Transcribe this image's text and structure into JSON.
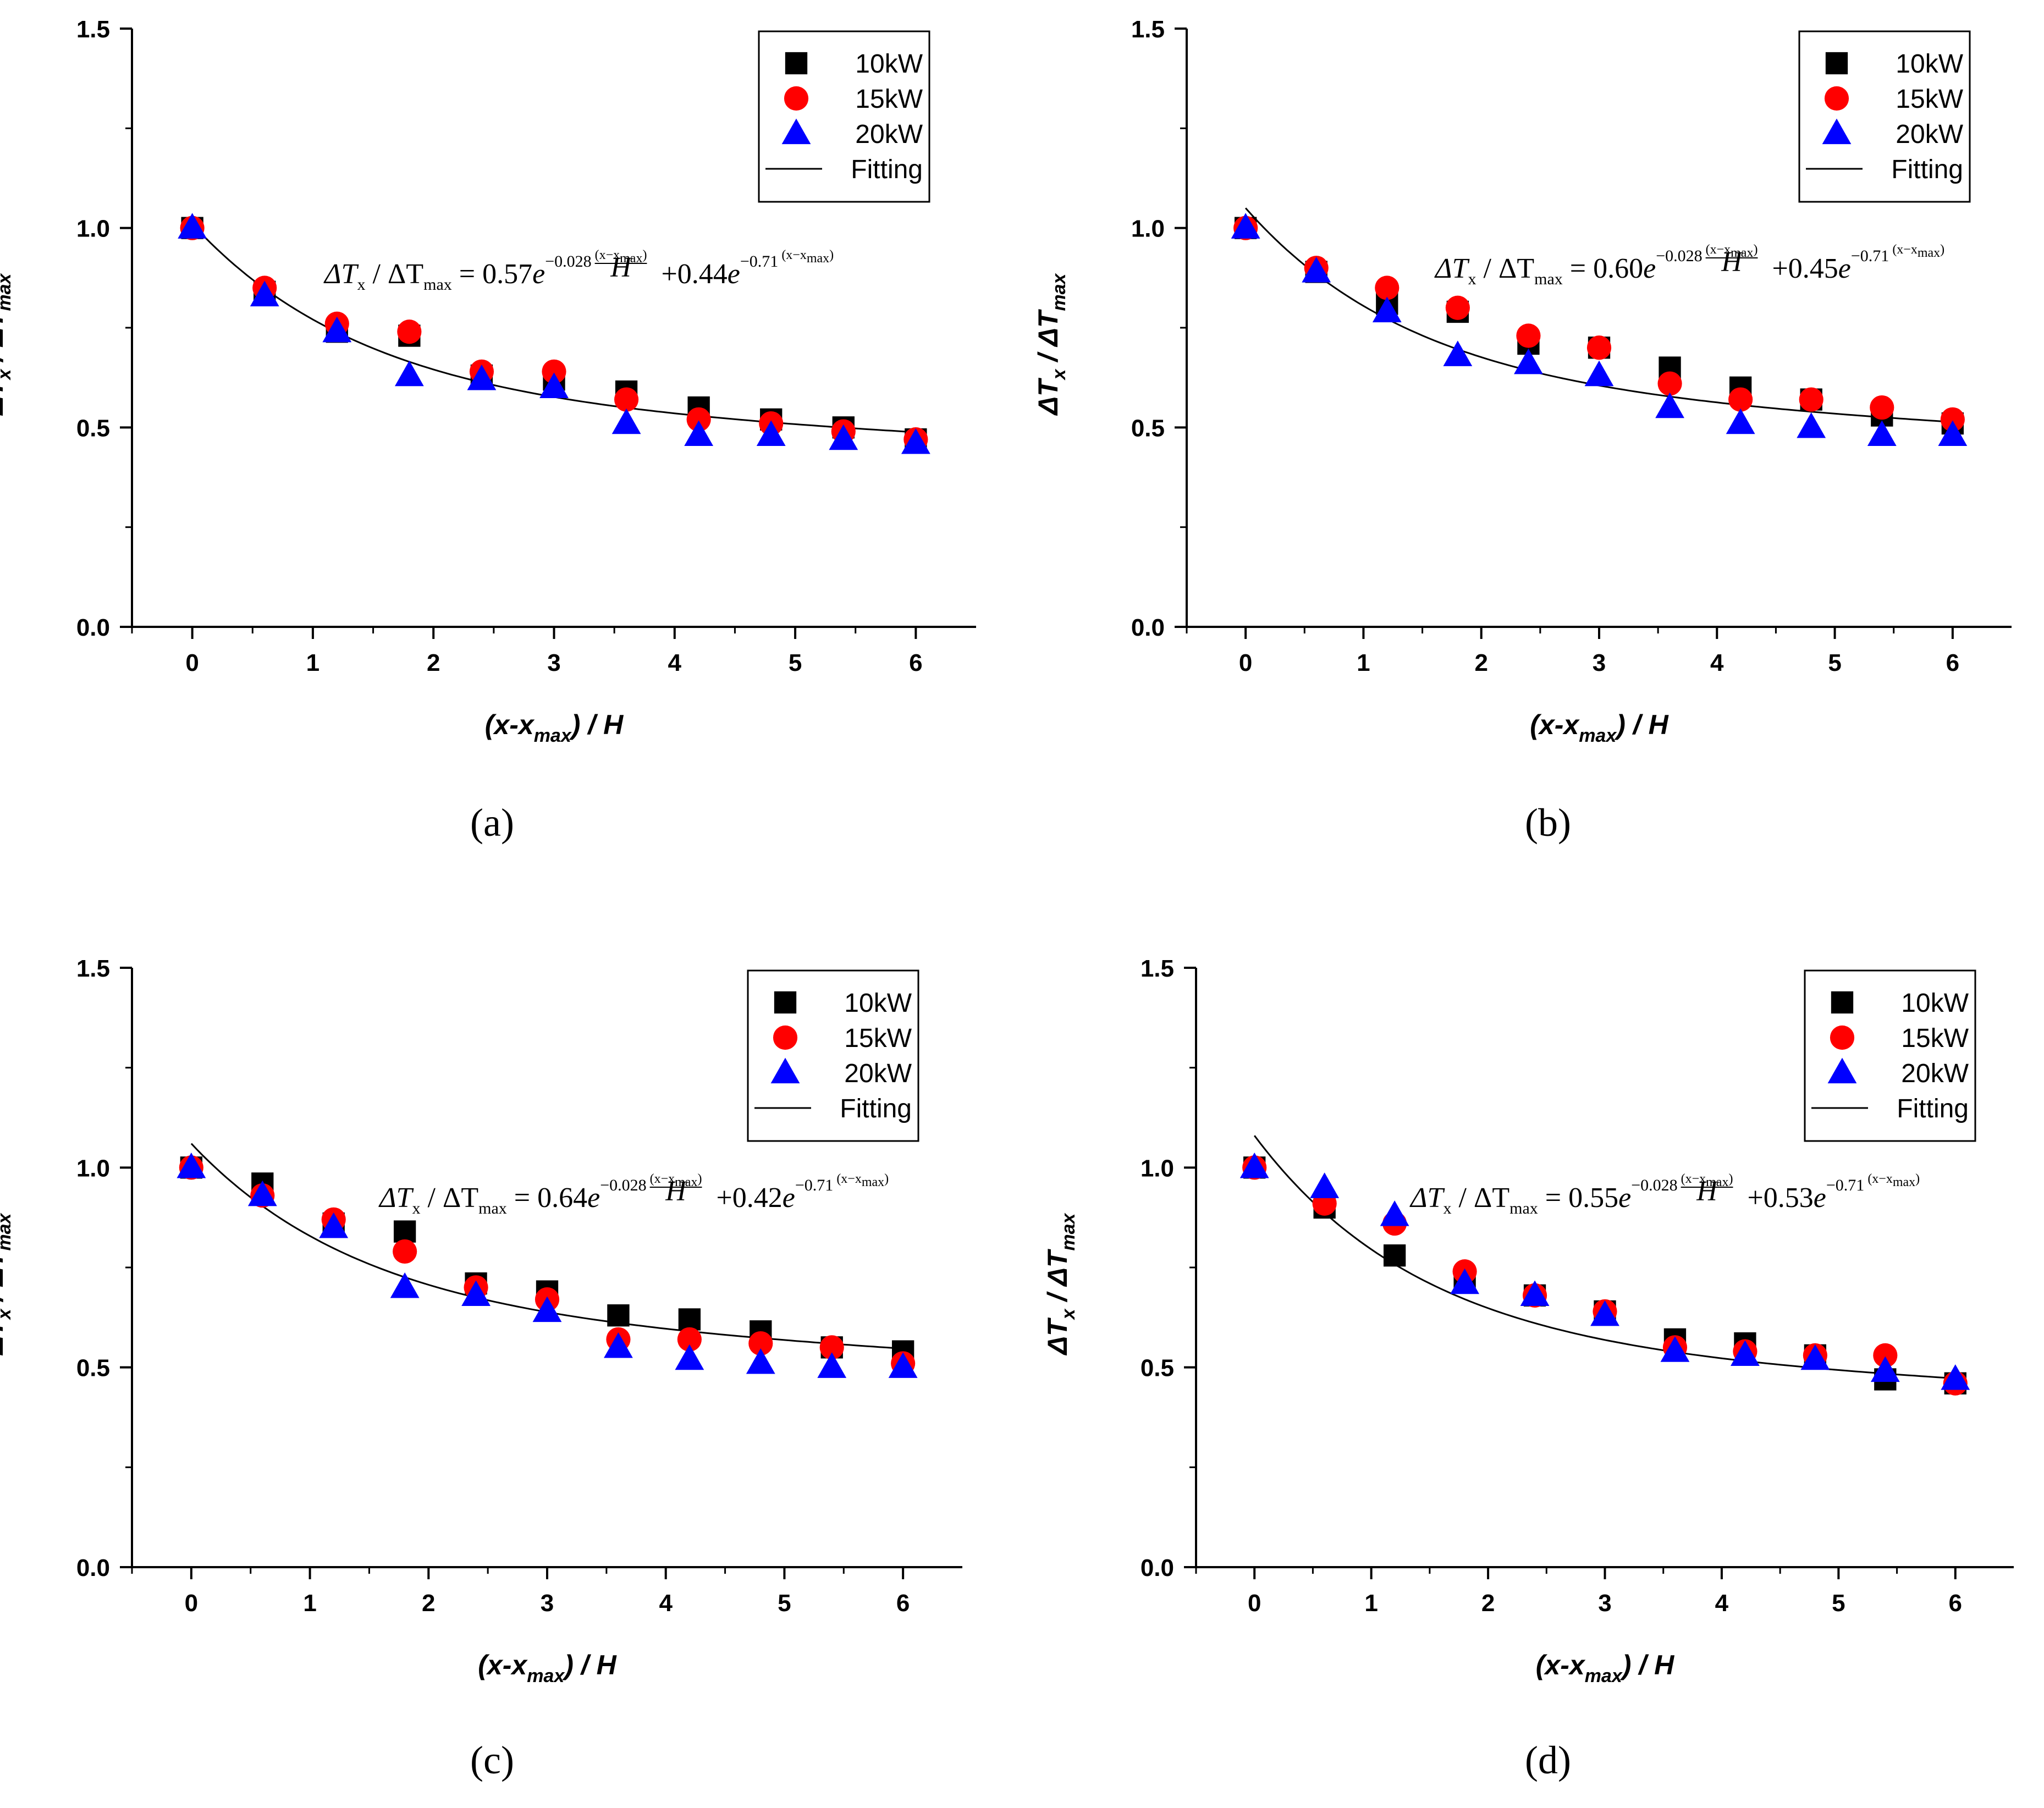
{
  "axis_common": {
    "xlabel_main": "(x-x",
    "xlabel_sub": "max",
    "xlabel_tail": ") / H",
    "ylabel_delta": "ΔT",
    "ylabel_sub_x": "x",
    "ylabel_sep": " / ΔT",
    "ylabel_sub_max": "max"
  },
  "legend": [
    {
      "label": "10kW",
      "marker": "square",
      "color": "#000000"
    },
    {
      "label": "15kW",
      "marker": "circle",
      "color": "#ff0000"
    },
    {
      "label": "20kW",
      "marker": "triangle",
      "color": "#0000ff"
    },
    {
      "label": "Fitting",
      "marker": "line",
      "color": "#000000"
    }
  ],
  "equation_parts": {
    "lhs_delta": "ΔT",
    "lhs_sub": "x",
    "lhs_sep": " / ΔT",
    "lhs_sub_max": "max",
    "equals": " = ",
    "e": "e",
    "plus": "+",
    "exp_num": "(x−x",
    "exp_num_sub": "max",
    "exp_num_close": ")",
    "exp_den": "H"
  },
  "chart_data": [
    {
      "panel": "a",
      "caption": "(a)",
      "type": "scatter",
      "xlabel": "(x-xmax) / H",
      "ylabel": "ΔTx / ΔTmax",
      "xlim": [
        -0.5,
        6.5
      ],
      "ylim": [
        0,
        1.5
      ],
      "xticks": [
        "0",
        "1",
        "2",
        "3",
        "4",
        "5",
        "6"
      ],
      "yticks": [
        "0.0",
        "0.5",
        "1.0",
        "1.5"
      ],
      "x": [
        0,
        0.6,
        1.2,
        1.8,
        2.4,
        3.0,
        3.6,
        4.2,
        4.8,
        5.4,
        6.0
      ],
      "series": [
        {
          "name": "10kW",
          "values": [
            1.0,
            0.84,
            0.74,
            0.73,
            0.63,
            0.62,
            0.59,
            0.55,
            0.52,
            0.5,
            0.47
          ]
        },
        {
          "name": "15kW",
          "values": [
            1.0,
            0.85,
            0.76,
            0.74,
            0.64,
            0.64,
            0.57,
            0.52,
            0.51,
            0.49,
            0.47
          ]
        },
        {
          "name": "20kW",
          "values": [
            1.0,
            0.83,
            0.74,
            0.63,
            0.62,
            0.6,
            0.51,
            0.48,
            0.48,
            0.47,
            0.46
          ]
        }
      ],
      "fit": {
        "a": 0.57,
        "b": -0.028,
        "c": 0.44,
        "d": -0.71
      },
      "equation": {
        "coef1": "0.57",
        "exp1": "−0.028",
        "coef2": "0.44",
        "exp2": "−0.71"
      },
      "legend_position": "top-right"
    },
    {
      "panel": "b",
      "caption": "(b)",
      "type": "scatter",
      "xlabel": "(x-xmax) / H",
      "ylabel": "ΔTx / ΔTmax",
      "xlim": [
        -0.5,
        6.5
      ],
      "ylim": [
        0,
        1.5
      ],
      "xticks": [
        "0",
        "1",
        "2",
        "3",
        "4",
        "5",
        "6"
      ],
      "yticks": [
        "0.0",
        "0.5",
        "1.0",
        "1.5"
      ],
      "x": [
        0,
        0.6,
        1.2,
        1.8,
        2.4,
        3.0,
        3.6,
        4.2,
        4.8,
        5.4,
        6.0
      ],
      "series": [
        {
          "name": "10kW",
          "values": [
            1.0,
            0.89,
            0.81,
            0.79,
            0.71,
            0.7,
            0.65,
            0.6,
            0.57,
            0.53,
            0.51
          ]
        },
        {
          "name": "15kW",
          "values": [
            1.0,
            0.9,
            0.85,
            0.8,
            0.73,
            0.7,
            0.61,
            0.57,
            0.57,
            0.55,
            0.52
          ]
        },
        {
          "name": "20kW",
          "values": [
            1.0,
            0.89,
            0.79,
            0.68,
            0.66,
            0.63,
            0.55,
            0.51,
            0.5,
            0.48,
            0.48
          ]
        }
      ],
      "fit": {
        "a": 0.6,
        "b": -0.028,
        "c": 0.45,
        "d": -0.71
      },
      "equation": {
        "coef1": "0.60",
        "exp1": "−0.028",
        "coef2": "0.45",
        "exp2": "−0.71"
      },
      "legend_position": "top-right"
    },
    {
      "panel": "c",
      "caption": "(c)",
      "type": "scatter",
      "xlabel": "(x-xmax) / H",
      "ylabel": "ΔTx / ΔTmax",
      "xlim": [
        -0.5,
        6.5
      ],
      "ylim": [
        0,
        1.5
      ],
      "xticks": [
        "0",
        "1",
        "2",
        "3",
        "4",
        "5",
        "6"
      ],
      "yticks": [
        "0.0",
        "0.5",
        "1.0",
        "1.5"
      ],
      "x": [
        0,
        0.6,
        1.2,
        1.8,
        2.4,
        3.0,
        3.6,
        4.2,
        4.8,
        5.4,
        6.0
      ],
      "series": [
        {
          "name": "10kW",
          "values": [
            1.0,
            0.96,
            0.86,
            0.84,
            0.71,
            0.69,
            0.63,
            0.62,
            0.59,
            0.55,
            0.54
          ]
        },
        {
          "name": "15kW",
          "values": [
            1.0,
            0.93,
            0.87,
            0.79,
            0.7,
            0.67,
            0.57,
            0.57,
            0.56,
            0.55,
            0.51
          ]
        },
        {
          "name": "20kW",
          "values": [
            1.0,
            0.93,
            0.85,
            0.7,
            0.68,
            0.64,
            0.55,
            0.52,
            0.51,
            0.5,
            0.5
          ]
        }
      ],
      "fit": {
        "a": 0.64,
        "b": -0.028,
        "c": 0.42,
        "d": -0.71
      },
      "equation": {
        "coef1": "0.64",
        "exp1": "−0.028",
        "coef2": "0.42",
        "exp2": "−0.71"
      },
      "legend_position": "top-right"
    },
    {
      "panel": "d",
      "caption": "(d)",
      "type": "scatter",
      "xlabel": "(x-xmax) / H",
      "ylabel": "ΔTx / ΔTmax",
      "xlim": [
        -0.5,
        6.5
      ],
      "ylim": [
        0,
        1.5
      ],
      "xticks": [
        "0",
        "1",
        "2",
        "3",
        "4",
        "5",
        "6"
      ],
      "yticks": [
        "0.0",
        "0.5",
        "1.0",
        "1.5"
      ],
      "x": [
        0,
        0.6,
        1.2,
        1.8,
        2.4,
        3.0,
        3.6,
        4.2,
        4.8,
        5.4,
        6.0
      ],
      "series": [
        {
          "name": "10kW",
          "values": [
            1.0,
            0.9,
            0.78,
            0.72,
            0.68,
            0.64,
            0.57,
            0.56,
            0.53,
            0.47,
            0.46
          ]
        },
        {
          "name": "15kW",
          "values": [
            1.0,
            0.91,
            0.86,
            0.74,
            0.68,
            0.64,
            0.55,
            0.54,
            0.53,
            0.53,
            0.46
          ]
        },
        {
          "name": "20kW",
          "values": [
            1.0,
            0.95,
            0.88,
            0.71,
            0.68,
            0.63,
            0.54,
            0.53,
            0.52,
            0.49,
            0.47
          ]
        }
      ],
      "fit": {
        "a": 0.55,
        "b": -0.028,
        "c": 0.53,
        "d": -0.71
      },
      "equation": {
        "coef1": "0.55",
        "exp1": "−0.028",
        "coef2": "0.53",
        "exp2": "−0.71"
      },
      "legend_position": "top-right"
    }
  ]
}
